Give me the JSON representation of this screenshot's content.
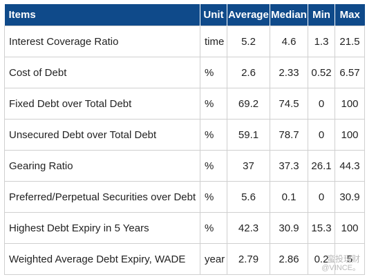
{
  "table": {
    "headers": [
      "Items",
      "Unit",
      "Average",
      "Median",
      "Min",
      "Max"
    ],
    "rows": [
      {
        "item": "Interest Coverage Ratio",
        "unit": "time",
        "average": "5.2",
        "median": "4.6",
        "min": "1.3",
        "max": "21.5"
      },
      {
        "item": "Cost of Debt",
        "unit": "%",
        "average": "2.6",
        "median": "2.33",
        "min": "0.52",
        "max": "6.57"
      },
      {
        "item": "Fixed Debt over Total Debt",
        "unit": "%",
        "average": "69.2",
        "median": "74.5",
        "min": "0",
        "max": "100"
      },
      {
        "item": "Unsecured Debt over Total Debt",
        "unit": "%",
        "average": "59.1",
        "median": "78.7",
        "min": "0",
        "max": "100"
      },
      {
        "item": "Gearing Ratio",
        "unit": "%",
        "average": "37",
        "median": "37.3",
        "min": "26.1",
        "max": "44.3"
      },
      {
        "item": "Preferred/Perpetual Securities over Debt",
        "unit": "%",
        "average": "5.6",
        "median": "0.1",
        "min": "0",
        "max": "30.9"
      },
      {
        "item": "Highest Debt Expiry in 5 Years",
        "unit": "%",
        "average": "42.3",
        "median": "30.9",
        "min": "15.3",
        "max": "100"
      },
      {
        "item": "Weighted Average Debt Expiry, WADE",
        "unit": "year",
        "average": "2.79",
        "median": "2.86",
        "min": "0.2",
        "max": "5"
      }
    ]
  },
  "watermark": {
    "line1": "蛮投理财",
    "line2": "@VINCE。"
  },
  "colors": {
    "header_bg": "#0f4a8a",
    "header_text": "#ffffff",
    "grid": "#cfcfcf"
  }
}
